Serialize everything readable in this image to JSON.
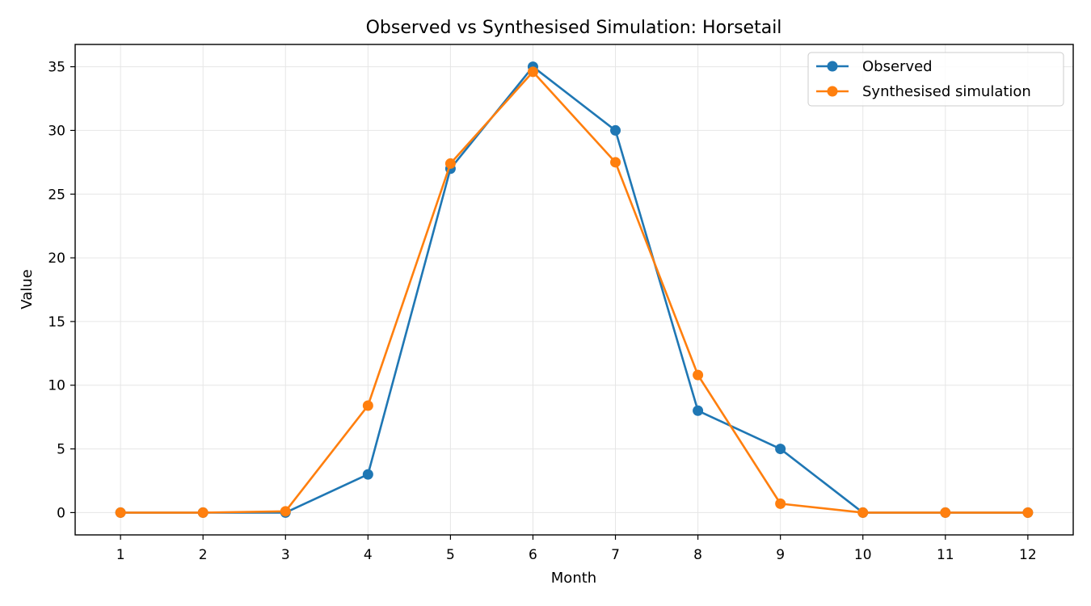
{
  "chart_data": {
    "type": "line",
    "title": "Observed vs Synthesised Simulation: Horsetail",
    "xlabel": "Month",
    "ylabel": "Value",
    "x": [
      1,
      2,
      3,
      4,
      5,
      6,
      7,
      8,
      9,
      10,
      11,
      12
    ],
    "xlim": [
      0.45,
      12.55
    ],
    "ylim": [
      -1.75,
      36.75
    ],
    "yticks": [
      0,
      5,
      10,
      15,
      20,
      25,
      30,
      35
    ],
    "grid": true,
    "legend_position": "top-right",
    "series": [
      {
        "name": "Observed",
        "color": "#1f77b4",
        "marker": "circle",
        "values": [
          0,
          0,
          0,
          3,
          27,
          35,
          30,
          8,
          5,
          0,
          0,
          0
        ]
      },
      {
        "name": "Synthesised simulation",
        "color": "#ff7f0e",
        "marker": "circle",
        "values": [
          0,
          0,
          0.1,
          8.4,
          27.4,
          34.6,
          27.5,
          10.8,
          0.7,
          0,
          0,
          0
        ]
      }
    ]
  }
}
